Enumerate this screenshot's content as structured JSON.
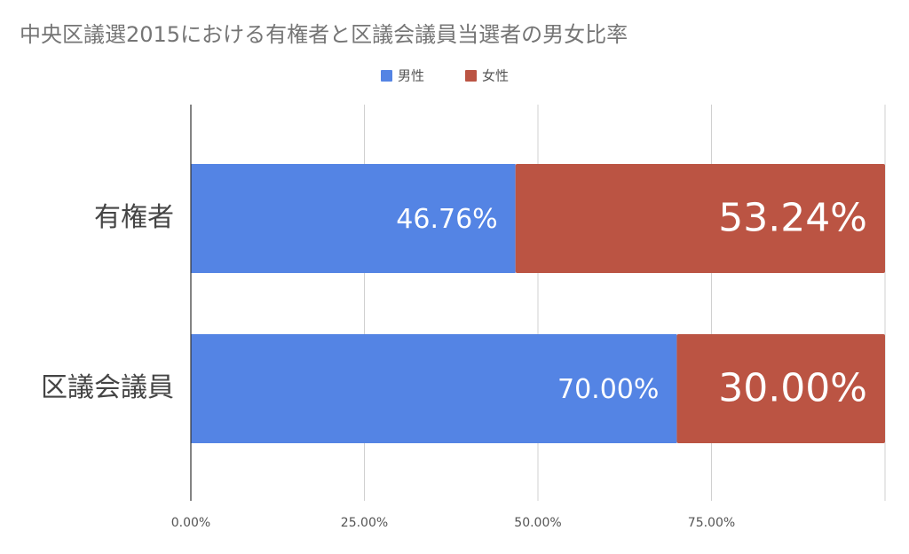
{
  "chart_data": {
    "type": "stacked-bar-horizontal",
    "title": "中央区議選2015における有権者と区議会議員当選者の男女比率",
    "categories": [
      "有権者",
      "区議会議員"
    ],
    "series": [
      {
        "name": "男性",
        "color": "#5484e4",
        "values": [
          46.76,
          70.0
        ],
        "value_labels": [
          "46.76%",
          "70.00%"
        ]
      },
      {
        "name": "女性",
        "color": "#bb5443",
        "values": [
          53.24,
          30.0
        ],
        "value_labels": [
          "53.24%",
          "30.00%"
        ]
      }
    ],
    "xlim": [
      0,
      100
    ],
    "xticks": [
      {
        "value": 0,
        "label": "0.00%"
      },
      {
        "value": 25,
        "label": "25.00%"
      },
      {
        "value": 50,
        "label": "50.00%"
      },
      {
        "value": 75,
        "label": "75.00%"
      }
    ],
    "grid": true,
    "legend": "top"
  }
}
